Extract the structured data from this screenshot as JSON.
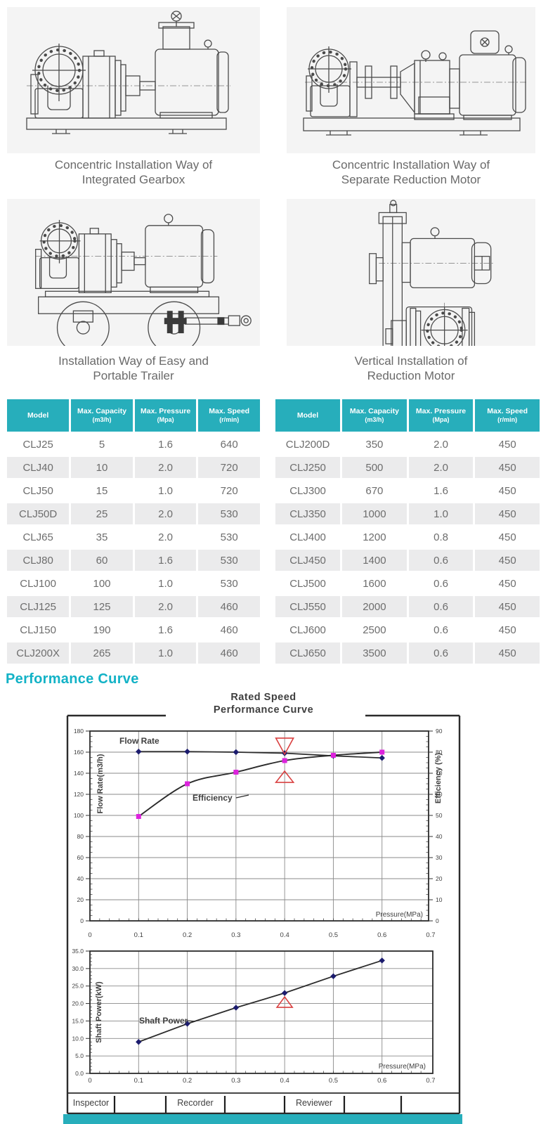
{
  "theme": {
    "teal": "#27aebb",
    "heading_teal": "#12b2c6",
    "panel_bg": "#f4f4f4",
    "caption_text": "#6a6a6a",
    "cell_text": "#6d6d6d",
    "chart_red": "#d94040",
    "marker_navy": "#1c1c6e",
    "marker_magenta": "#dd22dd",
    "line_dark": "#2b2b2b"
  },
  "figures": [
    {
      "caption": [
        "Concentric Installation Way of",
        "Integrated Gearbox"
      ]
    },
    {
      "caption": [
        "Concentric Installation Way of",
        "Separate Reduction Motor"
      ]
    },
    {
      "caption": [
        "Installation Way of Easy and",
        "Portable Trailer"
      ]
    },
    {
      "caption": [
        "Vertical Installation of",
        "Reduction Motor"
      ]
    }
  ],
  "tables": {
    "header": [
      {
        "line1": "Model",
        "line2": ""
      },
      {
        "line1": "Max. Capacity",
        "line2": "(m3/h)"
      },
      {
        "line1": "Max. Pressure",
        "line2": "(Mpa)"
      },
      {
        "line1": "Max. Speed",
        "line2": "(r/min)"
      }
    ],
    "left_rows": [
      [
        "CLJ25",
        "5",
        "1.6",
        "640"
      ],
      [
        "CLJ40",
        "10",
        "2.0",
        "720"
      ],
      [
        "CLJ50",
        "15",
        "1.0",
        "720"
      ],
      [
        "CLJ50D",
        "25",
        "2.0",
        "530"
      ],
      [
        "CLJ65",
        "35",
        "2.0",
        "530"
      ],
      [
        "CLJ80",
        "60",
        "1.6",
        "530"
      ],
      [
        "CLJ100",
        "100",
        "1.0",
        "530"
      ],
      [
        "CLJ125",
        "125",
        "2.0",
        "460"
      ],
      [
        "CLJ150",
        "190",
        "1.6",
        "460"
      ],
      [
        "CLJ200X",
        "265",
        "1.0",
        "460"
      ]
    ],
    "right_rows": [
      [
        "CLJ200D",
        "350",
        "2.0",
        "450"
      ],
      [
        "CLJ250",
        "500",
        "2.0",
        "450"
      ],
      [
        "CLJ300",
        "670",
        "1.6",
        "450"
      ],
      [
        "CLJ350",
        "1000",
        "1.0",
        "450"
      ],
      [
        "CLJ400",
        "1200",
        "0.8",
        "450"
      ],
      [
        "CLJ450",
        "1400",
        "0.6",
        "450"
      ],
      [
        "CLJ500",
        "1600",
        "0.6",
        "450"
      ],
      [
        "CLJ550",
        "2000",
        "0.6",
        "450"
      ],
      [
        "CLJ600",
        "2500",
        "0.6",
        "450"
      ],
      [
        "CLJ650",
        "3500",
        "0.6",
        "450"
      ]
    ]
  },
  "section_heading": "Performance Curve",
  "chart_data": [
    {
      "type": "line",
      "title": [
        "Rated Speed",
        "Performance  Curve"
      ],
      "xlabel": "Pressure(MPa)",
      "ylabel_left": "Flow Rate(m3/h)",
      "ylabel_right": "Efficiency (%)",
      "xlim": [
        0,
        0.7
      ],
      "xticks": [
        "0",
        "0.1",
        "0.2",
        "0.3",
        "0.4",
        "0.5",
        "0.6",
        "0.7"
      ],
      "grid_x": [
        0.1,
        0.2,
        0.3,
        0.4,
        0.5,
        0.6
      ],
      "ylim_left": [
        0,
        180
      ],
      "yticks_left": [
        180,
        160,
        140,
        120,
        100,
        80,
        60,
        40,
        20,
        0
      ],
      "ylim_right": [
        0,
        90
      ],
      "yticks_right": [
        90,
        80,
        70,
        60,
        50,
        40,
        30,
        20,
        10,
        0
      ],
      "legend_position": "inline-labels",
      "grid": true,
      "series": [
        {
          "name": "Flow Rate",
          "axis": "left",
          "marker": "diamond",
          "x": [
            0.1,
            0.2,
            0.3,
            0.4,
            0.5,
            0.6
          ],
          "y": [
            160.5,
            160.5,
            160,
            159,
            156.5,
            154.5
          ]
        },
        {
          "name": "Efficiency",
          "axis": "right",
          "marker": "square",
          "smooth": true,
          "x": [
            0.1,
            0.2,
            0.3,
            0.4,
            0.5,
            0.6
          ],
          "y": [
            49.5,
            65,
            70.5,
            76,
            78.5,
            80
          ]
        }
      ],
      "annotations": {
        "bowtie": {
          "x": 0.4,
          "down_top": 173.3,
          "down_apex": 158,
          "up_apex": 142,
          "up_base": 131.3
        }
      }
    },
    {
      "type": "line",
      "xlabel": "Pressure(MPa)",
      "ylabel": "Shaft Power(kW)",
      "xlim": [
        0,
        0.7
      ],
      "xticks": [
        "0",
        "0.1",
        "0.2",
        "0.3",
        "0.4",
        "0.5",
        "0.6",
        "0.7"
      ],
      "grid_x": [
        0.1,
        0.2,
        0.3,
        0.4,
        0.5,
        0.6
      ],
      "ylim": [
        0,
        35
      ],
      "yticks": [
        "35.0",
        "30.0",
        "25.0",
        "20.0",
        "15.0",
        "10.0",
        "5.0",
        "0.0"
      ],
      "grid": true,
      "series": [
        {
          "name": "Shaft Power",
          "marker": "diamond",
          "x": [
            0.1,
            0.2,
            0.3,
            0.4,
            0.5,
            0.6
          ],
          "y": [
            9,
            14.2,
            18.8,
            23,
            27.8,
            32.3
          ]
        }
      ],
      "annotations": {
        "triangle_up": {
          "x": 0.4,
          "apex": 21.9,
          "base": 18.9
        }
      }
    }
  ],
  "footer_row": {
    "labels": [
      "Inspector",
      "Recorder",
      "Reviewer"
    ]
  }
}
